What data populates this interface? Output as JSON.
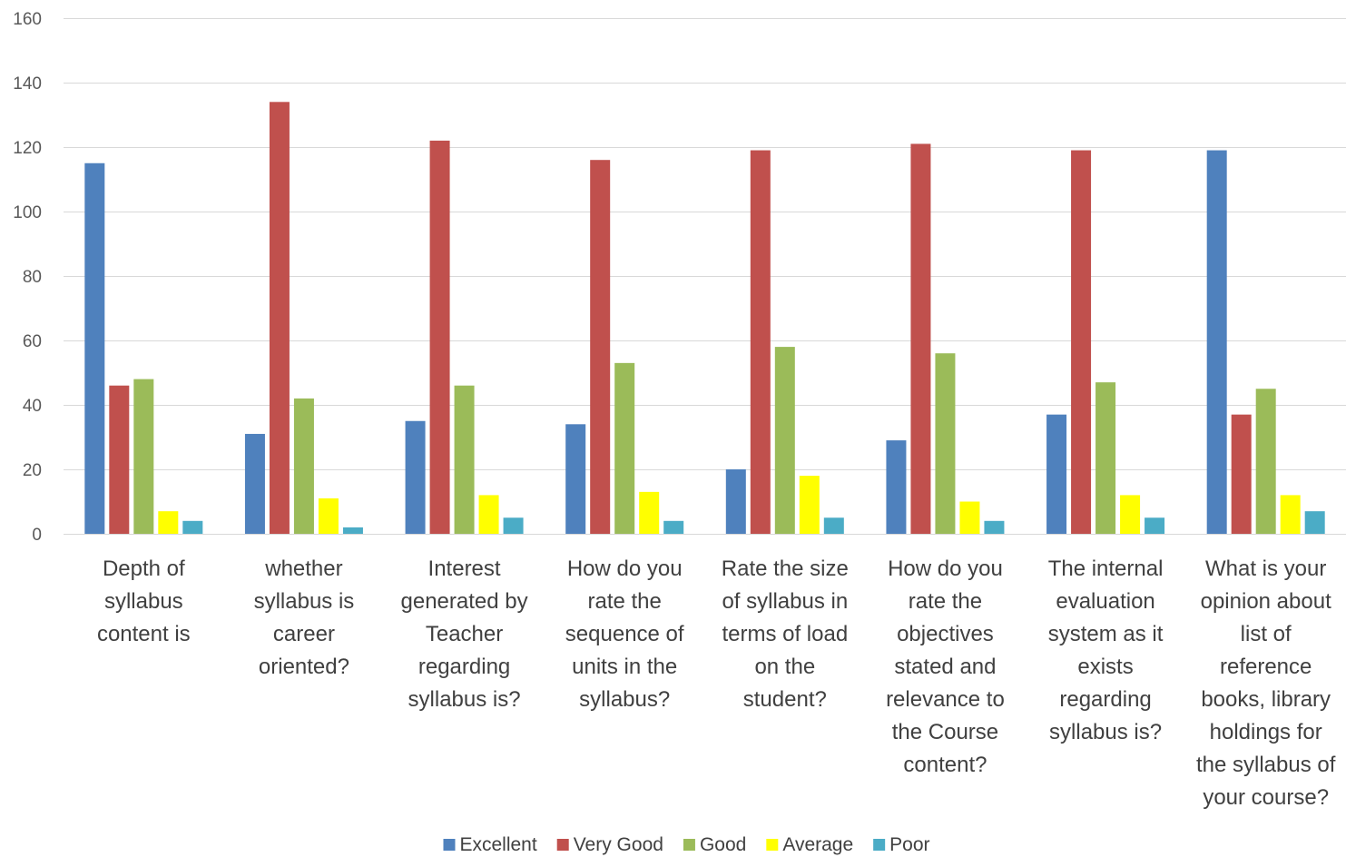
{
  "chart_data": {
    "type": "bar",
    "title": "",
    "xlabel": "",
    "ylabel": "",
    "ylim": [
      0,
      160
    ],
    "yticks": [
      0,
      20,
      40,
      60,
      80,
      100,
      120,
      140,
      160
    ],
    "grid": true,
    "legend_position": "bottom",
    "categories": [
      [
        "Depth of",
        "syllabus",
        "content is"
      ],
      [
        "whether",
        "syllabus is",
        "career",
        "oriented?"
      ],
      [
        "Interest",
        "generated by",
        "Teacher",
        "regarding",
        "syllabus is?"
      ],
      [
        "How do you",
        "rate the",
        "sequence of",
        "units in the",
        "syllabus?"
      ],
      [
        "Rate the size",
        "of syllabus in",
        "terms of load",
        "on the",
        "student?"
      ],
      [
        "How do you",
        "rate the",
        "objectives",
        "stated and",
        "relevance to",
        "the Course",
        "content?"
      ],
      [
        "The internal",
        "evaluation",
        "system as it",
        "exists",
        "regarding",
        "syllabus is?"
      ],
      [
        "What is your",
        "opinion about",
        "list of",
        "reference",
        "books, library",
        "holdings for",
        "the syllabus of",
        "your course?"
      ]
    ],
    "series": [
      {
        "name": "Excellent",
        "color": "#4f81bd",
        "values": [
          115,
          31,
          35,
          34,
          20,
          29,
          37,
          119
        ]
      },
      {
        "name": "Very Good",
        "color": "#c0504d",
        "values": [
          46,
          134,
          122,
          116,
          119,
          121,
          119,
          37
        ]
      },
      {
        "name": "Good",
        "color": "#9bbb59",
        "values": [
          48,
          42,
          46,
          53,
          58,
          56,
          47,
          45
        ]
      },
      {
        "name": "Average",
        "color": "#ffff00",
        "values": [
          7,
          11,
          12,
          13,
          18,
          10,
          12,
          12
        ]
      },
      {
        "name": "Poor",
        "color": "#4bacc6",
        "values": [
          4,
          2,
          5,
          4,
          5,
          4,
          5,
          7
        ]
      }
    ]
  }
}
